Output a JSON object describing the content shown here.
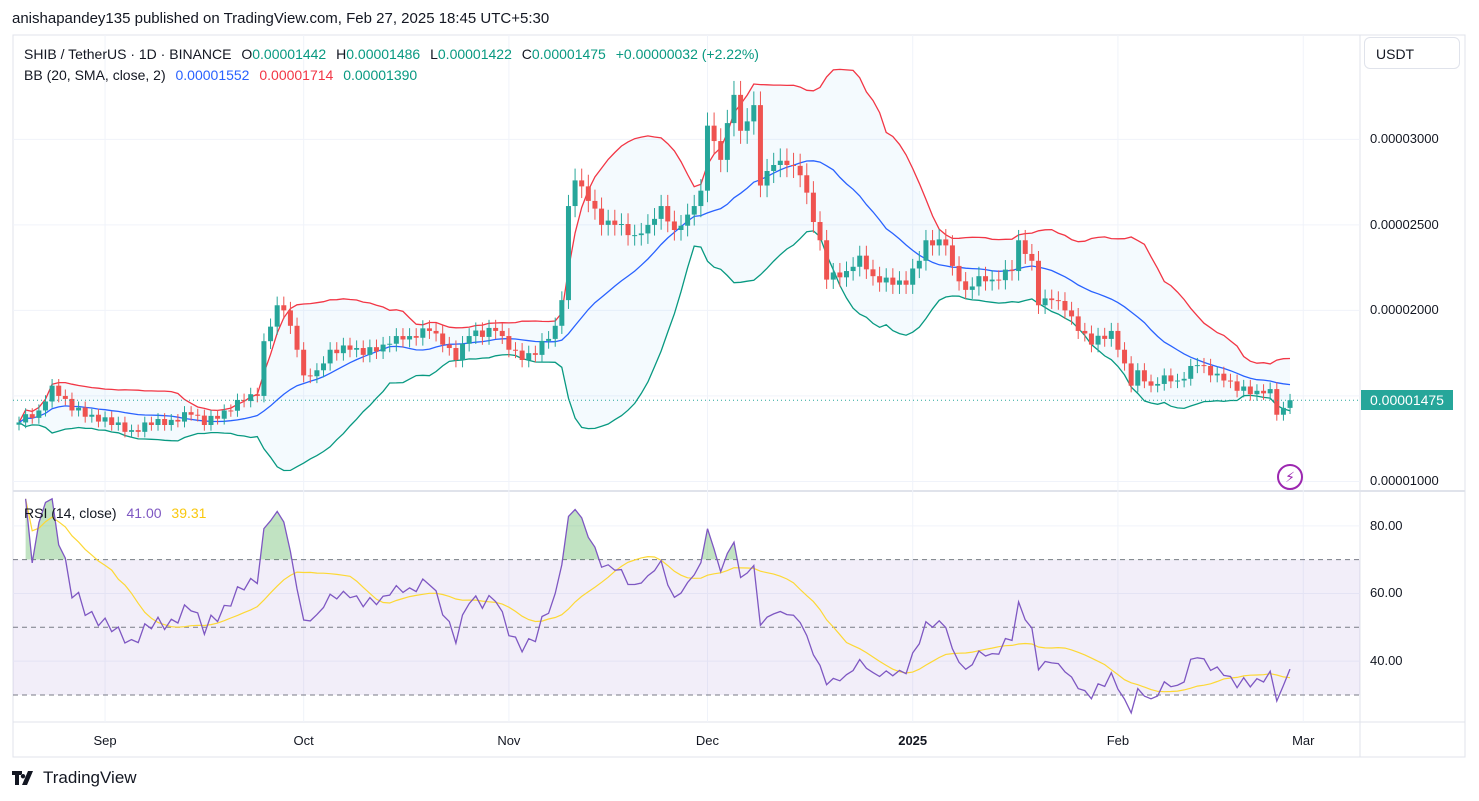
{
  "header": {
    "published": "anishapandey135 published on TradingView.com, Feb 27, 2025 18:45 UTC+5:30"
  },
  "symbol": {
    "title": "SHIB / TetherUS · 1D · BINANCE",
    "o_label": "O",
    "o": "0.00001442",
    "h_label": "H",
    "h": "0.00001486",
    "l_label": "L",
    "l": "0.00001422",
    "c_label": "C",
    "c": "0.00001475",
    "change": "+0.00000032 (+2.22%)"
  },
  "bb": {
    "title": "BB (20, SMA, close, 2)",
    "basis": "0.00001552",
    "upper": "0.00001714",
    "lower": "0.00001390"
  },
  "rsi": {
    "title": "RSI (14, close)",
    "value": "41.00",
    "ma": "39.31"
  },
  "price_axis": {
    "currency_button": "USDT",
    "ticks": [
      "0.00003000",
      "0.00002500",
      "0.00002000",
      "0.00001000"
    ],
    "tick_values": [
      3e-05,
      2.5e-05,
      2e-05,
      1e-05
    ],
    "last_price": "0.00001475"
  },
  "rsi_axis": {
    "ticks": [
      "80.00",
      "60.00",
      "40.00"
    ],
    "tick_values": [
      80,
      60,
      40
    ],
    "levels": [
      70,
      50,
      30
    ]
  },
  "time_axis": {
    "labels": [
      "Sep",
      "Oct",
      "Nov",
      "Dec",
      "2025",
      "Feb",
      "Mar"
    ],
    "label_dates": [
      "2024-09-01",
      "2024-10-01",
      "2024-11-01",
      "2024-12-01",
      "2025-01-01",
      "2025-02-01",
      "2025-03-01"
    ]
  },
  "footer": {
    "brand": "TradingView"
  },
  "icons": {
    "alert": "lightning-icon",
    "logo": "tradingview-logo-icon"
  },
  "colors": {
    "up": "#26a69a",
    "down": "#ef5350",
    "bb_basis": "#2962ff",
    "bb_upper": "#f23645",
    "bb_lower": "#089981",
    "rsi": "#7e57c2",
    "rsi_ma": "#fdd835",
    "last_price": "#26a69a"
  },
  "chart_data": {
    "type": "candlestick",
    "price_ylim": [
      9.5e-06,
      3.61e-05
    ],
    "rsi_ylim": [
      22,
      90
    ],
    "grid": true,
    "closes": [
      [
        "2024-08-19",
        1.345e-05
      ],
      [
        "2024-08-22",
        1.415e-05
      ],
      [
        "2024-08-24",
        1.56e-05
      ],
      [
        "2024-08-25",
        1.5e-05
      ],
      [
        "2024-08-27",
        1.415e-05
      ],
      [
        "2024-08-30",
        1.39e-05
      ],
      [
        "2024-09-02",
        1.33e-05
      ],
      [
        "2024-09-05",
        1.3e-05
      ],
      [
        "2024-09-08",
        1.33e-05
      ],
      [
        "2024-09-11",
        1.36e-05
      ],
      [
        "2024-09-14",
        1.39e-05
      ],
      [
        "2024-09-16",
        1.33e-05
      ],
      [
        "2024-09-19",
        1.415e-05
      ],
      [
        "2024-09-22",
        1.47e-05
      ],
      [
        "2024-09-24",
        1.5e-05
      ],
      [
        "2024-09-25",
        1.82e-05
      ],
      [
        "2024-09-27",
        2.03e-05
      ],
      [
        "2024-09-28",
        2e-05
      ],
      [
        "2024-09-30",
        1.77e-05
      ],
      [
        "2024-10-01",
        1.62e-05
      ],
      [
        "2024-10-03",
        1.65e-05
      ],
      [
        "2024-10-05",
        1.77e-05
      ],
      [
        "2024-10-08",
        1.77e-05
      ],
      [
        "2024-10-10",
        1.74e-05
      ],
      [
        "2024-10-13",
        1.8e-05
      ],
      [
        "2024-10-15",
        1.85e-05
      ],
      [
        "2024-10-17",
        1.85e-05
      ],
      [
        "2024-10-20",
        1.88e-05
      ],
      [
        "2024-10-22",
        1.8e-05
      ],
      [
        "2024-10-24",
        1.71e-05
      ],
      [
        "2024-10-26",
        1.85e-05
      ],
      [
        "2024-10-30",
        1.88e-05
      ],
      [
        "2024-11-01",
        1.77e-05
      ],
      [
        "2024-11-03",
        1.71e-05
      ],
      [
        "2024-11-05",
        1.74e-05
      ],
      [
        "2024-11-08",
        1.91e-05
      ],
      [
        "2024-11-09",
        2.06e-05
      ],
      [
        "2024-11-10",
        2.61e-05
      ],
      [
        "2024-11-11",
        2.76e-05
      ],
      [
        "2024-11-13",
        2.64e-05
      ],
      [
        "2024-11-15",
        2.5e-05
      ],
      [
        "2024-11-17",
        2.5e-05
      ],
      [
        "2024-11-20",
        2.44e-05
      ],
      [
        "2024-11-22",
        2.5e-05
      ],
      [
        "2024-11-24",
        2.61e-05
      ],
      [
        "2024-11-26",
        2.47e-05
      ],
      [
        "2024-11-28",
        2.56e-05
      ],
      [
        "2024-11-30",
        2.7e-05
      ],
      [
        "2024-12-01",
        3.08e-05
      ],
      [
        "2024-12-02",
        2.99e-05
      ],
      [
        "2024-12-03",
        2.88e-05
      ],
      [
        "2024-12-05",
        3.26e-05
      ],
      [
        "2024-12-06",
        3.05e-05
      ],
      [
        "2024-12-08",
        3.2e-05
      ],
      [
        "2024-12-09",
        2.73e-05
      ],
      [
        "2024-12-11",
        2.85e-05
      ],
      [
        "2024-12-13",
        2.85e-05
      ],
      [
        "2024-12-15",
        2.79e-05
      ],
      [
        "2024-12-18",
        2.41e-05
      ],
      [
        "2024-12-19",
        2.18e-05
      ],
      [
        "2024-12-22",
        2.23e-05
      ],
      [
        "2024-12-24",
        2.32e-05
      ],
      [
        "2024-12-26",
        2.2e-05
      ],
      [
        "2024-12-29",
        2.15e-05
      ],
      [
        "2024-12-31",
        2.15e-05
      ],
      [
        "2025-01-02",
        2.29e-05
      ],
      [
        "2025-01-03",
        2.41e-05
      ],
      [
        "2025-01-06",
        2.38e-05
      ],
      [
        "2025-01-07",
        2.26e-05
      ],
      [
        "2025-01-09",
        2.12e-05
      ],
      [
        "2025-01-11",
        2.2e-05
      ],
      [
        "2025-01-13",
        2.18e-05
      ],
      [
        "2025-01-16",
        2.23e-05
      ],
      [
        "2025-01-17",
        2.41e-05
      ],
      [
        "2025-01-19",
        2.29e-05
      ],
      [
        "2025-01-20",
        2.03e-05
      ],
      [
        "2025-01-22",
        2.06e-05
      ],
      [
        "2025-01-24",
        2e-05
      ],
      [
        "2025-01-26",
        1.88e-05
      ],
      [
        "2025-01-28",
        1.8e-05
      ],
      [
        "2025-01-31",
        1.88e-05
      ],
      [
        "2025-02-01",
        1.77e-05
      ],
      [
        "2025-02-03",
        1.56e-05
      ],
      [
        "2025-02-04",
        1.65e-05
      ],
      [
        "2025-02-06",
        1.56e-05
      ],
      [
        "2025-02-08",
        1.62e-05
      ],
      [
        "2025-02-10",
        1.59e-05
      ],
      [
        "2025-02-13",
        1.68e-05
      ],
      [
        "2025-02-15",
        1.62e-05
      ],
      [
        "2025-02-17",
        1.59e-05
      ],
      [
        "2025-02-19",
        1.53e-05
      ],
      [
        "2025-02-22",
        1.53e-05
      ],
      [
        "2025-02-24",
        1.54e-05
      ],
      [
        "2025-02-25",
        1.39e-05
      ],
      [
        "2025-02-26",
        1.43e-05
      ],
      [
        "2025-02-27",
        1.475e-05
      ]
    ]
  }
}
